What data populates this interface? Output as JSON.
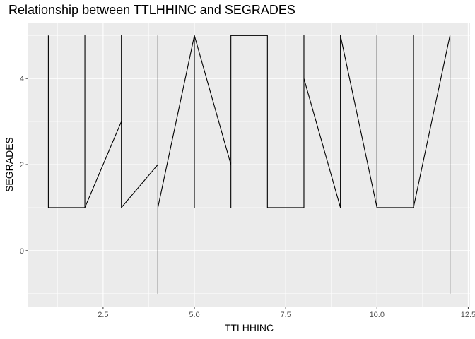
{
  "chart_data": {
    "type": "line",
    "title": "Relationship between TTLHHINC and SEGRADES",
    "xlabel": "TTLHHINC",
    "ylabel": "SEGRADES",
    "xlim": [
      0.45,
      12.55
    ],
    "ylim": [
      -1.3,
      5.3
    ],
    "x_ticks": [
      2.5,
      5.0,
      7.5,
      10.0,
      12.5
    ],
    "x_tick_labels": [
      "2.5",
      "5.0",
      "7.5",
      "10.0",
      "12.5"
    ],
    "y_ticks": [
      0,
      2,
      4
    ],
    "y_tick_labels": [
      "0",
      "2",
      "4"
    ],
    "grid": true,
    "background": "#ebebeb",
    "grid_color": "#ffffff",
    "line_color": "#000000",
    "series": [
      {
        "x": [
          1,
          1,
          1,
          2,
          2,
          2,
          3,
          3,
          3,
          4,
          4,
          4,
          4,
          5,
          5,
          5,
          6,
          6,
          6,
          7,
          7,
          7,
          8,
          8,
          8,
          9,
          9,
          9,
          10,
          10,
          10,
          11,
          11,
          11,
          12,
          12,
          12
        ],
        "y": [
          5,
          1,
          1,
          1,
          5,
          1,
          3,
          5,
          1,
          2,
          5,
          -1,
          1,
          5,
          1,
          5,
          2,
          1,
          5,
          5,
          1,
          1,
          1,
          5,
          4,
          1,
          5,
          5,
          1,
          5,
          1,
          1,
          5,
          1,
          5,
          -1,
          5
        ]
      }
    ]
  }
}
